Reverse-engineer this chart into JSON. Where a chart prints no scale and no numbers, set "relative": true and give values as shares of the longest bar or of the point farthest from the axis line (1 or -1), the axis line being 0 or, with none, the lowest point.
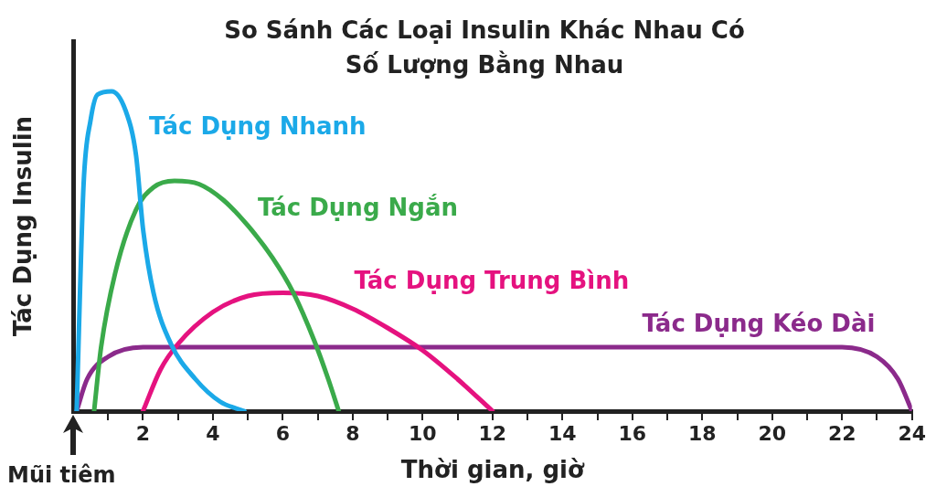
{
  "chart_data": {
    "type": "line",
    "title": "So Sánh Các Loại Insulin Khác Nhau Có Số Lượng Bằng Nhau",
    "xlabel": "Thời gian, giờ",
    "ylabel": "Tác Dụng Insulin",
    "relative": true,
    "xlim": [
      0,
      24
    ],
    "xticks": [
      {
        "value": 1,
        "label": null
      },
      2,
      {
        "value": 3,
        "label": null
      },
      4,
      {
        "value": 5,
        "label": null
      },
      6,
      {
        "value": 7,
        "label": null
      },
      8,
      {
        "value": 9,
        "label": null
      },
      10,
      {
        "value": 11,
        "label": null
      },
      12,
      {
        "value": 13,
        "label": null
      },
      14,
      {
        "value": 15,
        "label": null
      },
      16,
      {
        "value": 17,
        "label": null
      },
      18,
      {
        "value": 19,
        "label": null
      },
      20,
      {
        "value": 21,
        "label": null
      },
      22,
      {
        "value": 23,
        "label": null
      },
      24
    ],
    "annotations": [
      "Mũi tiêm"
    ],
    "series": [
      {
        "name": "Tác Dụng Nhanh",
        "color": "#1ba9e8",
        "x": [
          0.1,
          0.3,
          0.5,
          0.7,
          1.1,
          1.5,
          1.8,
          2.0,
          2.3,
          2.8,
          3.5,
          4.2,
          4.9
        ],
        "values": [
          0,
          0.71,
          0.91,
          0.99,
          1,
          0.94,
          0.8,
          0.57,
          0.37,
          0.21,
          0.1,
          0.03,
          0
        ]
      },
      {
        "name": "Tác Dụng Ngắn",
        "color": "#3aaa4a",
        "x": [
          0.6,
          0.8,
          1.2,
          1.8,
          2.3,
          2.9,
          3.6,
          4.3,
          5.0,
          5.7,
          6.3,
          6.9,
          7.3,
          7.6
        ],
        "values": [
          0,
          0.2,
          0.43,
          0.63,
          0.7,
          0.72,
          0.71,
          0.66,
          0.58,
          0.48,
          0.37,
          0.22,
          0.1,
          0
        ]
      },
      {
        "name": "Tác Dụng Trung Bình",
        "color": "#e5127f",
        "x": [
          2,
          2.5,
          3,
          4,
          5,
          6,
          7,
          8,
          9,
          10,
          11,
          12
        ],
        "values": [
          0,
          0.13,
          0.21,
          0.31,
          0.36,
          0.37,
          0.36,
          0.32,
          0.26,
          0.19,
          0.1,
          0
        ]
      },
      {
        "name": "Tác Dụng Kéo Dài",
        "color": "#8b2a8b",
        "x": [
          0.1,
          0.4,
          1.0,
          2,
          22,
          23,
          23.6,
          24
        ],
        "values": [
          0,
          0.1,
          0.17,
          0.2,
          0.2,
          0.17,
          0.1,
          0
        ]
      }
    ]
  }
}
